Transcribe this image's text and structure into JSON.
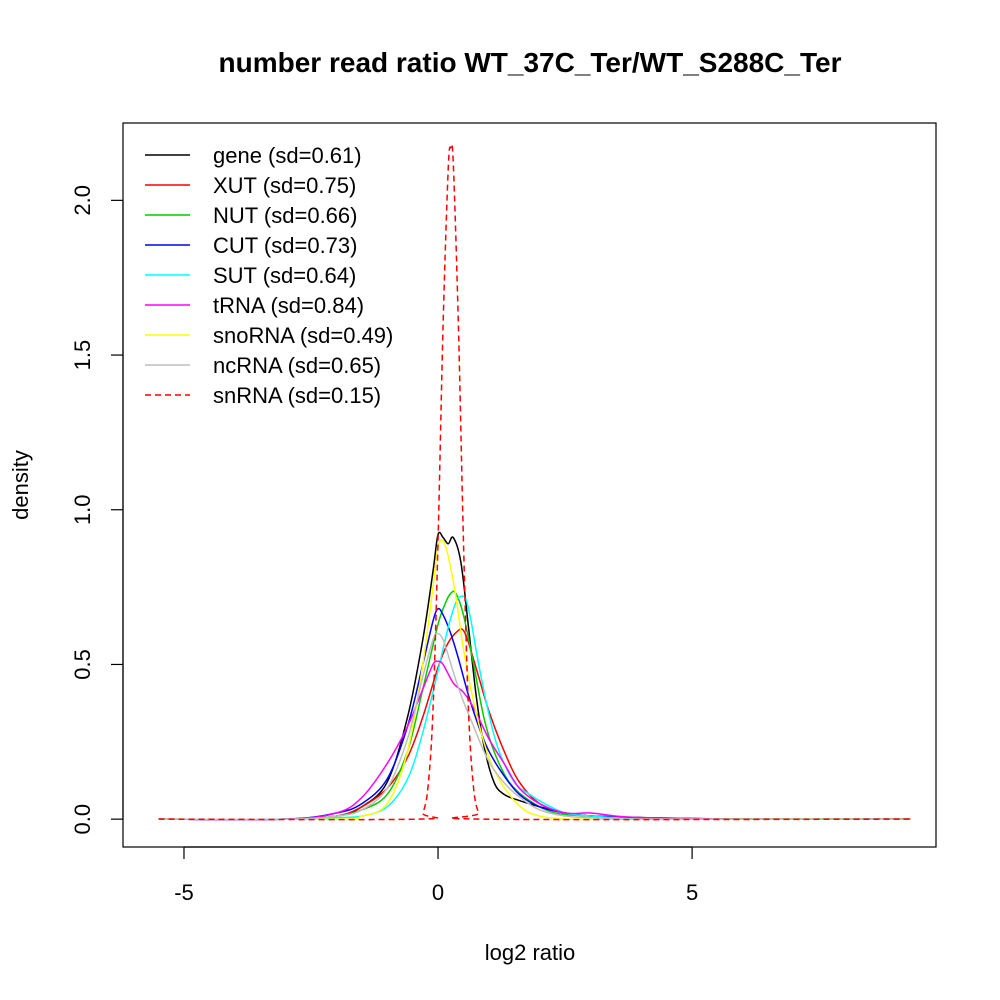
{
  "chart_data": {
    "type": "line",
    "title": "number read ratio WT_37C_Ter/WT_S288C_Ter",
    "xlabel": "log2 ratio",
    "ylabel": "density",
    "xlim": [
      -6.2,
      9.8
    ],
    "ylim": [
      -0.09,
      2.25
    ],
    "x_ticks": [
      -5,
      0,
      5
    ],
    "x_tick_labels": [
      "-5",
      "0",
      "5"
    ],
    "y_ticks": [
      0,
      0.5,
      1,
      1.5,
      2
    ],
    "y_tick_labels": [
      "0.0",
      "0.5",
      "1.0",
      "1.5",
      "2.0"
    ],
    "grid": false,
    "legend_position": "top-left",
    "series": [
      {
        "name": "gene (sd=0.61)",
        "color": "#000000",
        "dash": "solid",
        "x": [
          -5.5,
          -3,
          -2,
          -1.5,
          -1,
          -0.6,
          -0.3,
          -0.1,
          0,
          0.1,
          0.2,
          0.3,
          0.45,
          0.6,
          0.75,
          0.9,
          1.1,
          1.3,
          1.6,
          2,
          2.5,
          3,
          4,
          5,
          6,
          7,
          8,
          9.3
        ],
        "y": [
          0,
          0,
          0.01,
          0.04,
          0.12,
          0.33,
          0.58,
          0.8,
          0.92,
          0.91,
          0.89,
          0.91,
          0.83,
          0.62,
          0.4,
          0.24,
          0.12,
          0.08,
          0.06,
          0.04,
          0.02,
          0.01,
          0.005,
          0.002,
          0,
          0,
          0,
          0
        ]
      },
      {
        "name": "XUT (sd=0.75)",
        "color": "#ff0000",
        "dash": "solid",
        "x": [
          -5.5,
          -3,
          -2,
          -1.5,
          -1,
          -0.6,
          -0.3,
          0,
          0.2,
          0.4,
          0.5,
          0.6,
          0.8,
          1,
          1.3,
          1.6,
          2,
          2.5,
          3,
          4,
          5,
          6,
          9.3
        ],
        "y": [
          0,
          0,
          0.01,
          0.04,
          0.1,
          0.2,
          0.33,
          0.49,
          0.57,
          0.61,
          0.61,
          0.57,
          0.46,
          0.35,
          0.22,
          0.12,
          0.05,
          0.02,
          0.01,
          0.005,
          0.002,
          0,
          0
        ]
      },
      {
        "name": "NUT (sd=0.66)",
        "color": "#00cc00",
        "dash": "solid",
        "x": [
          -5.5,
          -3,
          -2,
          -1.5,
          -1,
          -0.6,
          -0.3,
          0,
          0.15,
          0.25,
          0.35,
          0.5,
          0.7,
          0.9,
          1.1,
          1.4,
          1.8,
          2.3,
          3,
          4,
          5,
          9.3
        ],
        "y": [
          0,
          0,
          0.01,
          0.03,
          0.08,
          0.22,
          0.42,
          0.63,
          0.7,
          0.73,
          0.73,
          0.66,
          0.5,
          0.33,
          0.22,
          0.12,
          0.06,
          0.02,
          0.01,
          0,
          0,
          0
        ]
      },
      {
        "name": "CUT (sd=0.73)",
        "color": "#0000ff",
        "dash": "solid",
        "x": [
          -5.5,
          -3,
          -2,
          -1.5,
          -1,
          -0.6,
          -0.3,
          -0.1,
          0,
          0.1,
          0.25,
          0.4,
          0.6,
          0.8,
          1,
          1.3,
          1.6,
          2,
          2.5,
          3,
          4,
          5,
          9.3
        ],
        "y": [
          0,
          0,
          0.02,
          0.05,
          0.13,
          0.3,
          0.5,
          0.64,
          0.68,
          0.66,
          0.6,
          0.52,
          0.4,
          0.3,
          0.22,
          0.14,
          0.08,
          0.04,
          0.02,
          0.01,
          0.005,
          0,
          0
        ]
      },
      {
        "name": "SUT (sd=0.64)",
        "color": "#00ffff",
        "dash": "solid",
        "x": [
          -5.5,
          -3,
          -2,
          -1.5,
          -1,
          -0.6,
          -0.3,
          0,
          0.2,
          0.35,
          0.45,
          0.55,
          0.65,
          0.8,
          1,
          1.2,
          1.5,
          1.8,
          2.1,
          2.5,
          3,
          4,
          5,
          9.3
        ],
        "y": [
          0,
          0,
          0.005,
          0.01,
          0.04,
          0.13,
          0.28,
          0.48,
          0.62,
          0.7,
          0.72,
          0.71,
          0.64,
          0.5,
          0.34,
          0.22,
          0.12,
          0.08,
          0.05,
          0.02,
          0.01,
          0,
          0,
          0
        ]
      },
      {
        "name": "tRNA (sd=0.84)",
        "color": "#ff00ff",
        "dash": "solid",
        "x": [
          -5.5,
          -3,
          -2,
          -1.5,
          -1,
          -0.6,
          -0.3,
          -0.1,
          0,
          0.1,
          0.3,
          0.5,
          0.7,
          1,
          1.3,
          1.6,
          2,
          2.5,
          3,
          3.5,
          4,
          5,
          6,
          9.3
        ],
        "y": [
          0,
          0,
          0.02,
          0.07,
          0.18,
          0.3,
          0.42,
          0.5,
          0.51,
          0.5,
          0.44,
          0.41,
          0.36,
          0.26,
          0.18,
          0.1,
          0.05,
          0.02,
          0.02,
          0.01,
          0.005,
          0.002,
          0,
          0
        ]
      },
      {
        "name": "snoRNA (sd=0.49)",
        "color": "#ffff00",
        "dash": "solid",
        "x": [
          -5.5,
          -2,
          -1.5,
          -1,
          -0.6,
          -0.3,
          -0.1,
          0,
          0.1,
          0.2,
          0.35,
          0.5,
          0.7,
          0.9,
          1.1,
          1.4,
          1.7,
          2,
          2.5,
          3,
          9.3
        ],
        "y": [
          0,
          0,
          0.01,
          0.05,
          0.22,
          0.5,
          0.75,
          0.88,
          0.9,
          0.85,
          0.72,
          0.55,
          0.38,
          0.25,
          0.16,
          0.08,
          0.03,
          0.01,
          0,
          0,
          0
        ]
      },
      {
        "name": "ncRNA (sd=0.65)",
        "color": "#bebebe",
        "dash": "solid",
        "x": [
          -5.5,
          -3,
          -2,
          -1.5,
          -1,
          -0.6,
          -0.3,
          -0.1,
          0,
          0.1,
          0.2,
          0.35,
          0.5,
          0.7,
          0.9,
          1.1,
          1.4,
          1.7,
          2,
          2.5,
          3,
          4,
          9.3
        ],
        "y": [
          0,
          0,
          0.01,
          0.03,
          0.1,
          0.26,
          0.46,
          0.58,
          0.6,
          0.58,
          0.53,
          0.45,
          0.38,
          0.3,
          0.22,
          0.16,
          0.1,
          0.06,
          0.03,
          0.01,
          0.005,
          0,
          0
        ]
      },
      {
        "name": "snRNA (sd=0.15)",
        "color": "#ff0000",
        "dash": "dashed",
        "x": [
          -5.5,
          -0.4,
          -0.3,
          -0.2,
          -0.1,
          0,
          0.1,
          0.2,
          0.25,
          0.3,
          0.4,
          0.5,
          0.6,
          0.7,
          0.8,
          0.9,
          9.3
        ],
        "y": [
          0,
          0,
          0.02,
          0.1,
          0.35,
          0.9,
          1.6,
          2.1,
          2.17,
          2.12,
          1.6,
          0.9,
          0.35,
          0.1,
          0.02,
          0,
          0
        ]
      }
    ]
  }
}
